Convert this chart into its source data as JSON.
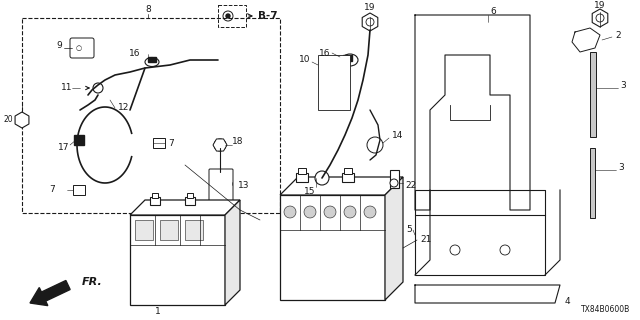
{
  "bg_color": "#ffffff",
  "line_color": "#1a1a1a",
  "diagram_code": "TX84B0600B",
  "figsize": [
    6.4,
    3.2
  ],
  "dpi": 100
}
